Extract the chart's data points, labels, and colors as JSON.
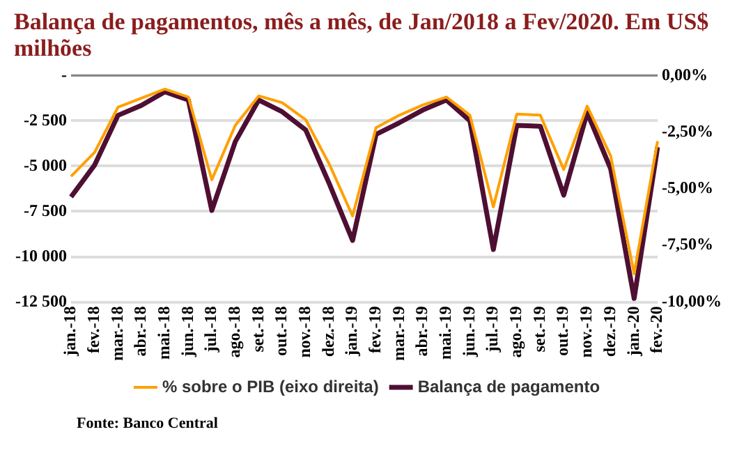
{
  "chart_data": {
    "type": "line",
    "title": "Balança de pagamentos, mês a mês, de Jan/2018 a Fev/2020. Em US$ milhões",
    "categories": [
      "jan.-18",
      "fev.-18",
      "mar.-18",
      "abr.-18",
      "mai.-18",
      "jun.-18",
      "jul.-18",
      "ago.-18",
      "set.-18",
      "out.-18",
      "nov.-18",
      "dez.-18",
      "jan.-19",
      "fev.-19",
      "mar.-19",
      "abr.-19",
      "mai.-19",
      "jun.-19",
      "jul.-19",
      "ago.-19",
      "set.-19",
      "out.-19",
      "nov.-19",
      "dez.-19",
      "jan.-20",
      "fev.-20"
    ],
    "series": [
      {
        "name": "Balança de pagamento",
        "color": "#4e0f33",
        "values": [
          -6700,
          -4950,
          -2200,
          -1650,
          -900,
          -1350,
          -7450,
          -3650,
          -1350,
          -2000,
          -3000,
          -5950,
          -9100,
          -3250,
          -2600,
          -1900,
          -1350,
          -2500,
          -9600,
          -2750,
          -2800,
          -6600,
          -2050,
          -5150,
          -12300,
          -3950
        ]
      },
      {
        "name": "% sobre o PIB (eixo direita)",
        "color": "#ffa000",
        "axis": "y2",
        "values": [
          -4.45,
          -3.4,
          -1.4,
          -1.0,
          -0.6,
          -0.95,
          -4.6,
          -2.2,
          -0.9,
          -1.2,
          -1.95,
          -3.9,
          -6.2,
          -2.3,
          -1.75,
          -1.3,
          -0.95,
          -1.75,
          -5.8,
          -1.7,
          -1.75,
          -4.15,
          -1.35,
          -3.55,
          -8.75,
          -2.9
        ]
      }
    ],
    "ylim": [
      -12500,
      0
    ],
    "yticks": [
      {
        "value": 0,
        "label": "-"
      },
      {
        "value": -2500,
        "label": "-2 500"
      },
      {
        "value": -5000,
        "label": "-5 000"
      },
      {
        "value": -7500,
        "label": "-7 500"
      },
      {
        "value": -10000,
        "label": "-10 000"
      },
      {
        "value": -12500,
        "label": "-12 500"
      }
    ],
    "y2lim": [
      -10,
      0
    ],
    "y2ticks": [
      {
        "value": 0,
        "label": "0,00%"
      },
      {
        "value": -2.5,
        "label": "-2,50%"
      },
      {
        "value": -5,
        "label": "-5,00%"
      },
      {
        "value": -7.5,
        "label": "-7,50%"
      },
      {
        "value": -10,
        "label": "-10,00%"
      }
    ],
    "grid": "y",
    "legend": "bottom",
    "marker": "none",
    "line_style": "solid",
    "annotations": [
      "Fonte: Banco Central"
    ]
  }
}
